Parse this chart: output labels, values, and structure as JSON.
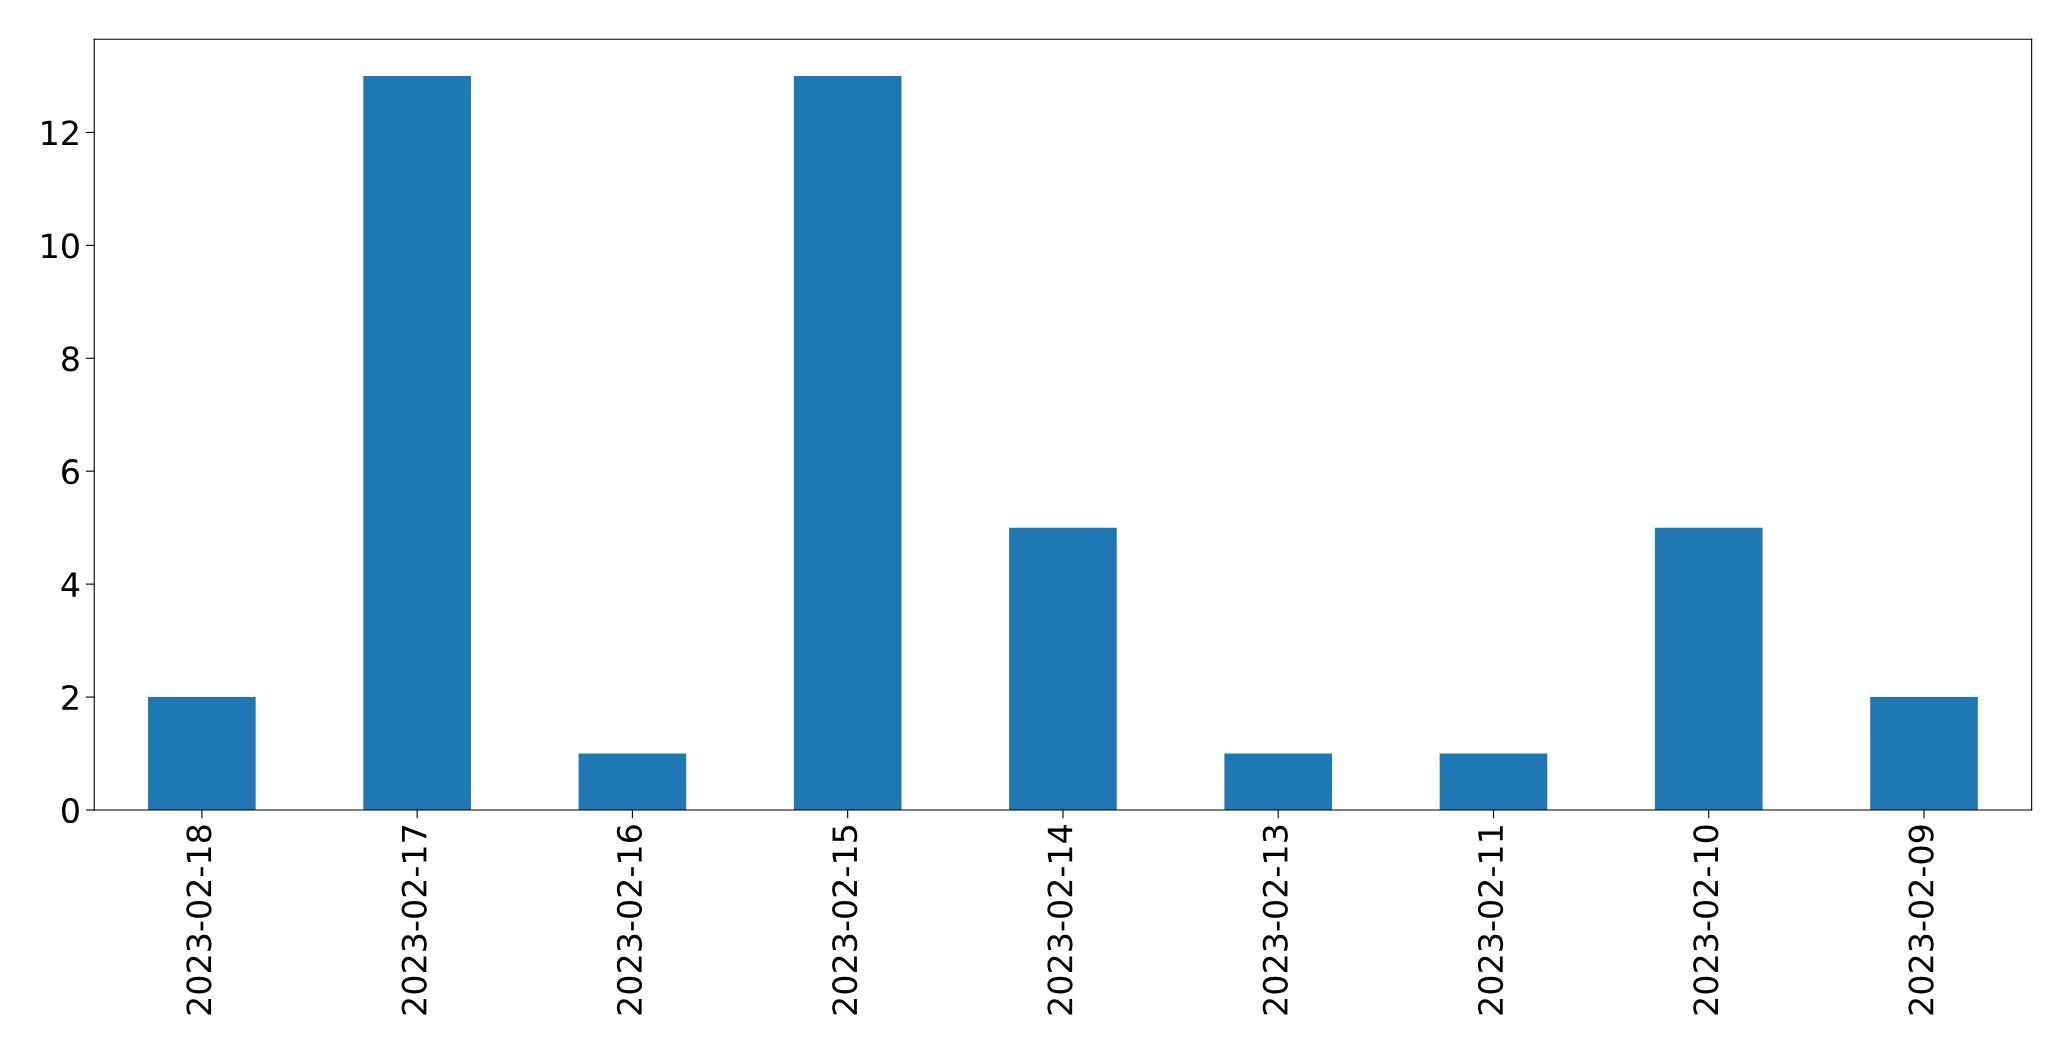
{
  "chart_data": {
    "type": "bar",
    "categories": [
      "2023-02-18",
      "2023-02-17",
      "2023-02-16",
      "2023-02-15",
      "2023-02-14",
      "2023-02-13",
      "2023-02-11",
      "2023-02-10",
      "2023-02-09"
    ],
    "values": [
      2,
      13,
      1,
      13,
      5,
      1,
      1,
      5,
      2
    ],
    "color": "#1f77b4",
    "ylim": [
      0,
      13.65
    ],
    "yticks": [
      0,
      2,
      4,
      6,
      8,
      10,
      12
    ],
    "grid": false,
    "legend": false
  }
}
